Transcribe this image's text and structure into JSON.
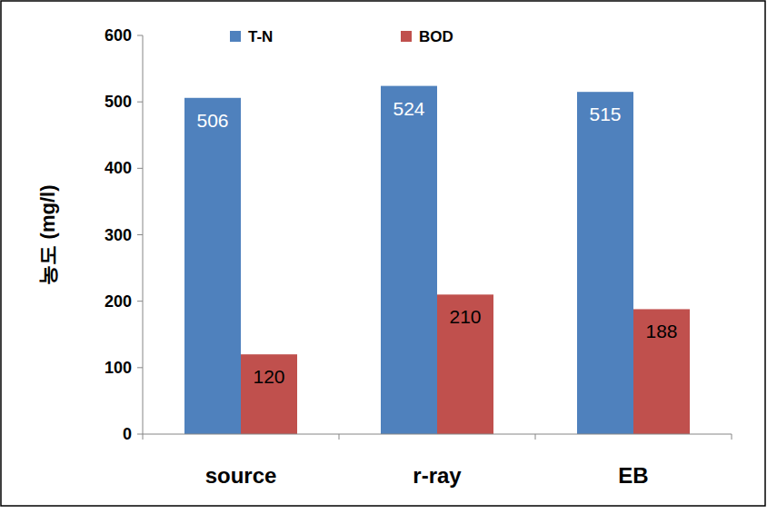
{
  "chart_data": {
    "type": "bar",
    "categories": [
      "source",
      "r-ray",
      "EB"
    ],
    "series": [
      {
        "name": "T-N",
        "color": "#4f81bd",
        "values": [
          506,
          524,
          515
        ]
      },
      {
        "name": "BOD",
        "color": "#c0504d",
        "values": [
          120,
          210,
          188
        ]
      }
    ],
    "ylabel": "농도 (mg/l)",
    "ylim": [
      0,
      600
    ],
    "yticks": [
      0,
      100,
      200,
      300,
      400,
      500,
      600
    ],
    "grid": false,
    "legend": "top",
    "data_labels": true
  }
}
